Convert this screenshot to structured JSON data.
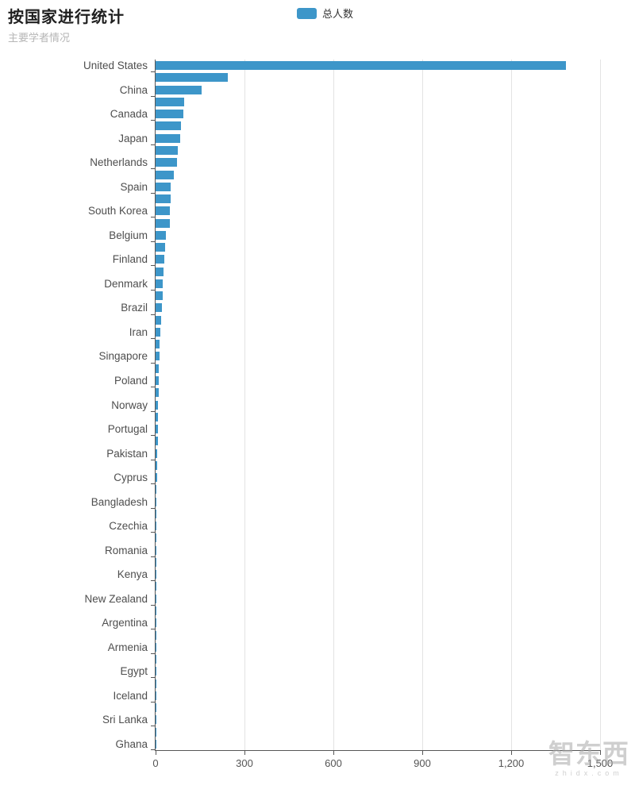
{
  "header": {
    "title": "按国家进行统计",
    "subtitle": "主要学者情况"
  },
  "legend": {
    "label": "总人数",
    "color": "#3D96C9"
  },
  "watermark": {
    "logo_text": "智东西",
    "url_text": "zhidx.com"
  },
  "colors": {
    "bar": "#3D96C9",
    "axis": "#565656",
    "grid": "#e3e3e3",
    "axis_label": "#4e4e4e",
    "title": "#1f1f1f",
    "subtitle": "#b6b6b6"
  },
  "chart_data": {
    "type": "bar",
    "orientation": "horizontal",
    "title": "按国家进行统计",
    "subtitle": "主要学者情况",
    "series_name": "总人数",
    "xlabel": "",
    "ylabel": "",
    "xlim": [
      0,
      1500
    ],
    "x_ticks": [
      0,
      300,
      600,
      900,
      1200,
      1500
    ],
    "x_tick_labels": [
      "0",
      "300",
      "600",
      "900",
      "1,200",
      "1,500"
    ],
    "grid": true,
    "legend_position": "top-center",
    "axis_label_note": "y-axis shows a label only for every other bar; unlabeled bars are unnamed in the pixels",
    "categories": [
      "United States",
      "",
      "China",
      "",
      "Canada",
      "",
      "Japan",
      "",
      "Netherlands",
      "",
      "Spain",
      "",
      "South Korea",
      "",
      "Belgium",
      "",
      "Finland",
      "",
      "Denmark",
      "",
      "Brazil",
      "",
      "Iran",
      "",
      "Singapore",
      "",
      "Poland",
      "",
      "Norway",
      "",
      "Portugal",
      "",
      "Pakistan",
      "",
      "Cyprus",
      "",
      "Bangladesh",
      "",
      "Czechia",
      "",
      "Romania",
      "",
      "Kenya",
      "",
      "New Zealand",
      "",
      "Argentina",
      "",
      "Armenia",
      "",
      "Egypt",
      "",
      "Iceland",
      "",
      "Sri Lanka",
      "",
      "Ghana"
    ],
    "values": [
      1385,
      245,
      155,
      97,
      93,
      86,
      82,
      76,
      72,
      62,
      52,
      51,
      49,
      48,
      35,
      32,
      29,
      27,
      25,
      23,
      21,
      19,
      16,
      14,
      13,
      12,
      11,
      10,
      9,
      8,
      8,
      7,
      6,
      5,
      5,
      4,
      4,
      3,
      3,
      3,
      2,
      2,
      2,
      2,
      2,
      1,
      1,
      1,
      1,
      1,
      1,
      1,
      1,
      1,
      1,
      1,
      1
    ]
  }
}
